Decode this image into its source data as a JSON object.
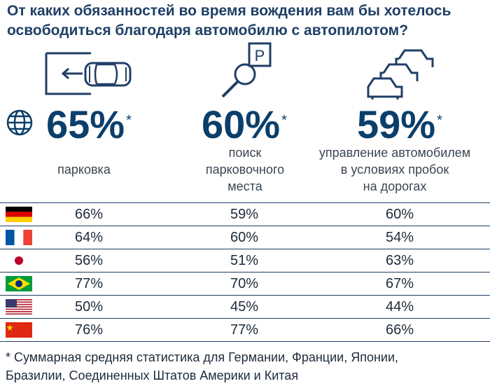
{
  "title": {
    "line1": "От каких обязанностей во время вождения вам бы хотелось",
    "line2": "освободиться благодаря автомобилю с автопилотом?"
  },
  "icons": {
    "parking": "car-reversing-into-garage-icon",
    "search": "parking-sign-magnifier-icon",
    "traffic": "traffic-jam-cars-icon",
    "globe": "globe-icon"
  },
  "colors": {
    "accent": "#0b3f6b",
    "title": "#1f3f66",
    "lines": "#1f3f66"
  },
  "chart_data": {
    "type": "table",
    "categories": [
      "парковка",
      "поиск парковочного места",
      "управление автомобилем в условиях пробок на дорогах"
    ],
    "overall": {
      "values": [
        "65%",
        "60%",
        "59%"
      ],
      "star": "*"
    },
    "labels": {
      "c1": [
        "парковка"
      ],
      "c2": [
        "поиск",
        "парковочного",
        "места"
      ],
      "c3": [
        "управление автомобилем",
        "в условиях пробок",
        "на дорогах"
      ]
    },
    "rows": [
      {
        "country": "germany-flag-icon",
        "values": [
          "66%",
          "59%",
          "60%"
        ]
      },
      {
        "country": "france-flag-icon",
        "values": [
          "64%",
          "60%",
          "54%"
        ]
      },
      {
        "country": "japan-flag-icon",
        "values": [
          "56%",
          "51%",
          "63%"
        ]
      },
      {
        "country": "brazil-flag-icon",
        "values": [
          "77%",
          "70%",
          "67%"
        ]
      },
      {
        "country": "usa-flag-icon",
        "values": [
          "50%",
          "45%",
          "44%"
        ]
      },
      {
        "country": "china-flag-icon",
        "values": [
          "76%",
          "77%",
          "66%"
        ]
      }
    ]
  },
  "footnote": {
    "line1": "* Суммарная средняя статистика для Германии, Франции, Японии,",
    "line2": "Бразилии, Соединенных Штатов Америки и Китая"
  }
}
